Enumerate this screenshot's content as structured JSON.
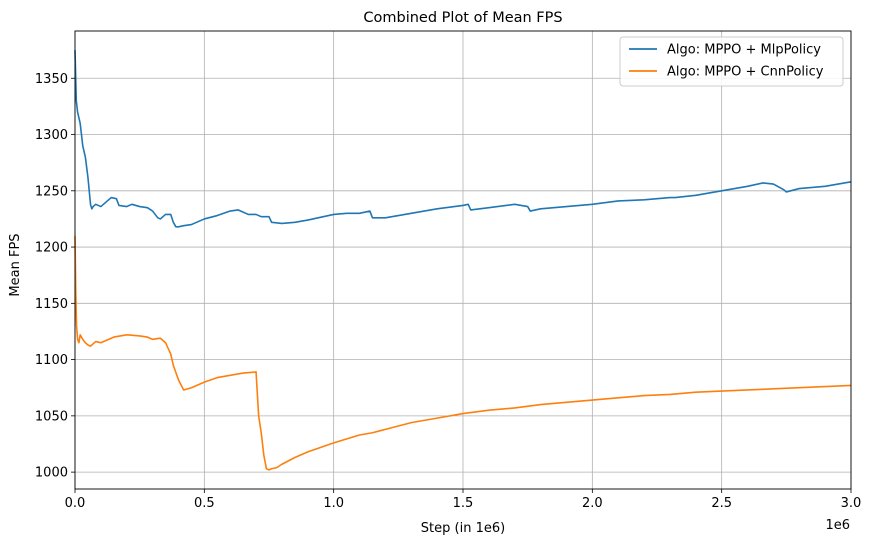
{
  "chart_data": {
    "type": "line",
    "title": "Combined Plot of Mean FPS",
    "xlabel": "Step (in 1e6)",
    "ylabel": "Mean FPS",
    "x_offset_label": "1e6",
    "xlim": [
      0,
      3.0
    ],
    "ylim": [
      985,
      1392
    ],
    "xticks": [
      0.0,
      0.5,
      1.0,
      1.5,
      2.0,
      2.5,
      3.0
    ],
    "xtick_labels": [
      "0.0",
      "0.5",
      "1.0",
      "1.5",
      "2.0",
      "2.5",
      "3.0"
    ],
    "yticks": [
      1000,
      1050,
      1100,
      1150,
      1200,
      1250,
      1300,
      1350
    ],
    "ytick_labels": [
      "1000",
      "1050",
      "1100",
      "1150",
      "1200",
      "1250",
      "1300",
      "1350"
    ],
    "grid": true,
    "legend_position": "top-right",
    "series": [
      {
        "name": "Algo: MPPO + MlpPolicy",
        "color": "#1f77b4",
        "x": [
          0.0,
          0.005,
          0.01,
          0.02,
          0.03,
          0.04,
          0.05,
          0.06,
          0.065,
          0.07,
          0.08,
          0.1,
          0.12,
          0.14,
          0.16,
          0.17,
          0.2,
          0.22,
          0.25,
          0.28,
          0.3,
          0.32,
          0.33,
          0.35,
          0.37,
          0.38,
          0.39,
          0.4,
          0.42,
          0.45,
          0.5,
          0.55,
          0.6,
          0.63,
          0.65,
          0.67,
          0.7,
          0.72,
          0.75,
          0.76,
          0.8,
          0.85,
          0.9,
          1.0,
          1.05,
          1.1,
          1.14,
          1.15,
          1.2,
          1.3,
          1.4,
          1.5,
          1.52,
          1.53,
          1.6,
          1.7,
          1.75,
          1.76,
          1.8,
          1.9,
          2.0,
          2.1,
          2.2,
          2.3,
          2.32,
          2.4,
          2.5,
          2.6,
          2.66,
          2.7,
          2.74,
          2.75,
          2.8,
          2.9,
          3.0
        ],
        "y": [
          1375,
          1330,
          1320,
          1310,
          1290,
          1280,
          1262,
          1238,
          1234,
          1236,
          1238,
          1236,
          1240,
          1244,
          1243,
          1237,
          1236,
          1238,
          1236,
          1235,
          1232,
          1226,
          1225,
          1229,
          1229,
          1222,
          1218,
          1218,
          1219,
          1220,
          1225,
          1228,
          1232,
          1233,
          1231,
          1229,
          1229,
          1227,
          1227,
          1222,
          1221,
          1222,
          1224,
          1229,
          1230,
          1230,
          1232,
          1226,
          1226,
          1230,
          1234,
          1237,
          1238,
          1233,
          1235,
          1238,
          1236,
          1232,
          1234,
          1236,
          1238,
          1241,
          1242,
          1244,
          1244,
          1246,
          1250,
          1254,
          1257,
          1256,
          1251,
          1249,
          1252,
          1254,
          1258
        ]
      },
      {
        "name": "Algo: MPPO + CnnPolicy",
        "color": "#ff7f0e",
        "x": [
          0.0,
          0.003,
          0.006,
          0.01,
          0.015,
          0.02,
          0.03,
          0.04,
          0.05,
          0.06,
          0.08,
          0.1,
          0.15,
          0.2,
          0.25,
          0.28,
          0.3,
          0.33,
          0.35,
          0.37,
          0.38,
          0.4,
          0.42,
          0.45,
          0.5,
          0.55,
          0.6,
          0.65,
          0.7,
          0.71,
          0.72,
          0.73,
          0.74,
          0.75,
          0.76,
          0.78,
          0.8,
          0.85,
          0.9,
          1.0,
          1.1,
          1.15,
          1.2,
          1.3,
          1.4,
          1.5,
          1.6,
          1.7,
          1.8,
          1.9,
          2.0,
          2.1,
          2.2,
          2.3,
          2.4,
          2.5,
          2.6,
          2.7,
          2.8,
          2.9,
          3.0
        ],
        "y": [
          1210,
          1160,
          1130,
          1118,
          1115,
          1122,
          1118,
          1115,
          1113,
          1112,
          1116,
          1115,
          1120,
          1122,
          1121,
          1120,
          1118,
          1119,
          1115,
          1105,
          1095,
          1082,
          1073,
          1075,
          1080,
          1084,
          1086,
          1088,
          1089,
          1050,
          1035,
          1015,
          1003,
          1002,
          1003,
          1004,
          1007,
          1013,
          1018,
          1026,
          1033,
          1035,
          1038,
          1044,
          1048,
          1052,
          1055,
          1057,
          1060,
          1062,
          1064,
          1066,
          1068,
          1069,
          1071,
          1072,
          1073,
          1074,
          1075,
          1076,
          1077
        ]
      }
    ]
  }
}
